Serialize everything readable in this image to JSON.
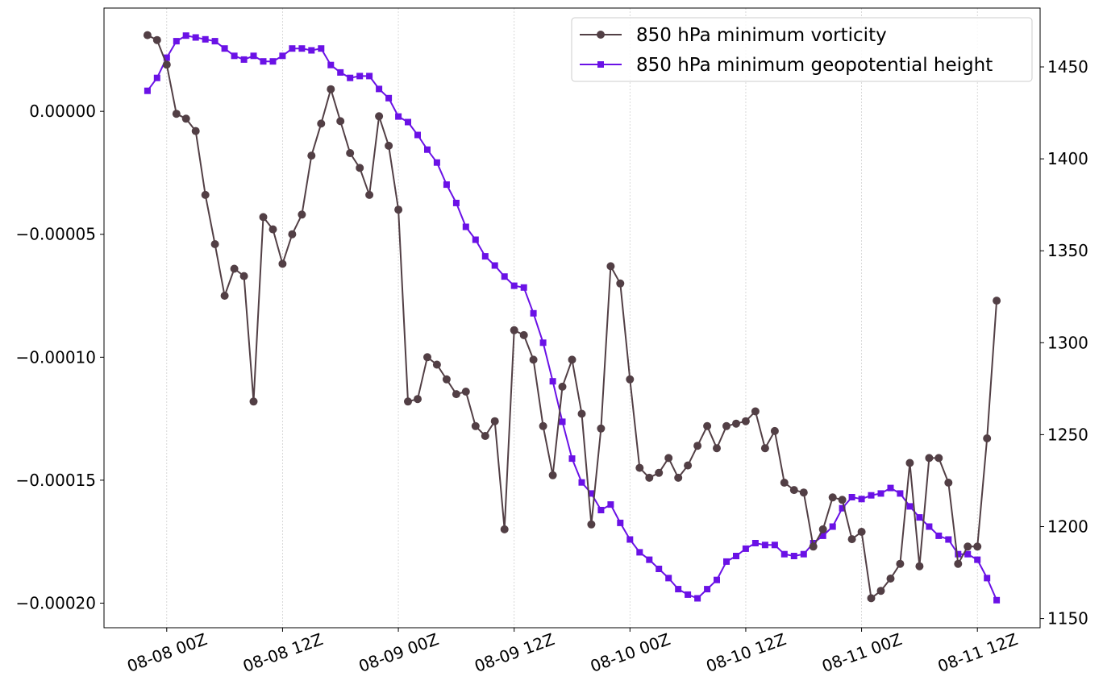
{
  "chart_data": {
    "type": "line",
    "title": "",
    "xlabel": "",
    "ylabel": "",
    "y2label": "",
    "grid": {
      "x": true,
      "y": false
    },
    "legend": {
      "position": "top-right"
    },
    "x_ticks": [
      "08-08 00Z",
      "08-08 12Z",
      "08-09 00Z",
      "08-09 12Z",
      "08-10 00Z",
      "08-10 12Z",
      "08-11 00Z",
      "08-11 12Z"
    ],
    "x_range_hours": [
      -6.5,
      90.5
    ],
    "y_left": {
      "lim": [
        -0.00021,
        4.2e-05
      ],
      "ticks": [
        0.0,
        -5e-05,
        -0.0001,
        -0.00015,
        -0.0002
      ],
      "tick_labels": [
        "0.00000",
        "−0.00005",
        "−0.00010",
        "−0.00015",
        "−0.00020"
      ]
    },
    "y_right": {
      "lim": [
        1145,
        1482
      ],
      "ticks": [
        1150,
        1200,
        1250,
        1300,
        1350,
        1400,
        1450
      ],
      "tick_labels": [
        "1150",
        "1200",
        "1250",
        "1300",
        "1350",
        "1400",
        "1450"
      ]
    },
    "x_hours_start": -2,
    "x_hours_step": 1,
    "series": [
      {
        "name": "850 hPa minimum vorticity",
        "axis": "left",
        "color": "#523f45",
        "marker": "circle",
        "values": [
          3.1e-05,
          2.9e-05,
          1.9e-05,
          -1e-06,
          -3e-06,
          -8e-06,
          -3.4e-05,
          -5.4e-05,
          -7.5e-05,
          -6.4e-05,
          -6.7e-05,
          -0.000118,
          -4.3e-05,
          -4.8e-05,
          -6.2e-05,
          -5e-05,
          -4.2e-05,
          -1.8e-05,
          -5e-06,
          9e-06,
          -4e-06,
          -1.7e-05,
          -2.3e-05,
          -3.4e-05,
          -2e-06,
          -1.4e-05,
          -4e-05,
          -0.000118,
          -0.000117,
          -0.0001,
          -0.000103,
          -0.000109,
          -0.000115,
          -0.000114,
          -0.000128,
          -0.000132,
          -0.000126,
          -0.00017,
          -8.9e-05,
          -9.1e-05,
          -0.000101,
          -0.000128,
          -0.000148,
          -0.000112,
          -0.000101,
          -0.000123,
          -0.000168,
          -0.000129,
          -6.3e-05,
          -7e-05,
          -0.000109,
          -0.000145,
          -0.000149,
          -0.000147,
          -0.000141,
          -0.000149,
          -0.000144,
          -0.000136,
          -0.000128,
          -0.000137,
          -0.000128,
          -0.000127,
          -0.000126,
          -0.000122,
          -0.000137,
          -0.00013,
          -0.000151,
          -0.000154,
          -0.000155,
          -0.000177,
          -0.00017,
          -0.000157,
          -0.000158,
          -0.000174,
          -0.000171,
          -0.000198,
          -0.000195,
          -0.00019,
          -0.000184,
          -0.000143,
          -0.000185,
          -0.000141,
          -0.000141,
          -0.000151,
          -0.000184,
          -0.000177,
          -0.000177,
          -0.000133,
          -7.7e-05
        ]
      },
      {
        "name": "850 hPa minimum geopotential height",
        "axis": "right",
        "color": "#6a11e6",
        "marker": "square",
        "values": [
          1437,
          1444,
          1455,
          1464,
          1467,
          1466,
          1465,
          1464,
          1460,
          1456,
          1454,
          1456,
          1453,
          1453,
          1456,
          1460,
          1460,
          1459,
          1460,
          1451,
          1447,
          1444,
          1445,
          1445,
          1438,
          1433,
          1423,
          1420,
          1413,
          1405,
          1398,
          1386,
          1376,
          1363,
          1356,
          1347,
          1342,
          1336,
          1331,
          1330,
          1316,
          1300,
          1279,
          1257,
          1237,
          1224,
          1218,
          1209,
          1212,
          1202,
          1193,
          1186,
          1182,
          1177,
          1172,
          1166,
          1163,
          1161,
          1166,
          1171,
          1181,
          1184,
          1188,
          1191,
          1190,
          1190,
          1185,
          1184,
          1185,
          1191,
          1195,
          1200,
          1210,
          1216,
          1215,
          1217,
          1218,
          1221,
          1218,
          1211,
          1205,
          1200,
          1195,
          1193,
          1185,
          1185,
          1182,
          1172,
          1160
        ]
      }
    ]
  }
}
